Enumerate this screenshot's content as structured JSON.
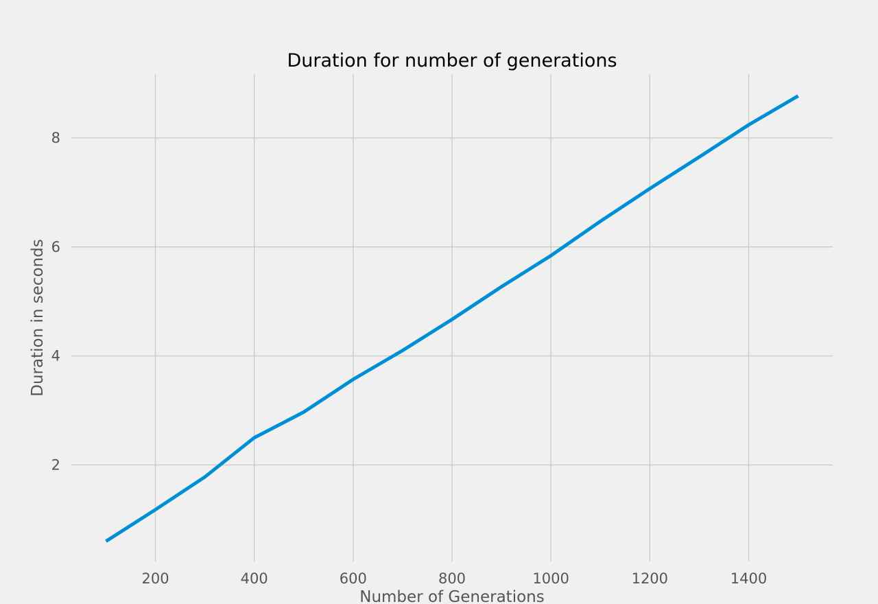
{
  "chart_data": {
    "type": "line",
    "title": "Duration for number of generations",
    "xlabel": "Number of Generations",
    "ylabel": "Duration in seconds",
    "x": [
      100,
      200,
      300,
      400,
      500,
      600,
      700,
      800,
      900,
      1000,
      1100,
      1200,
      1300,
      1400,
      1500
    ],
    "series": [
      {
        "values": [
          0.6,
          1.18,
          1.78,
          2.5,
          2.97,
          3.57,
          4.1,
          4.67,
          5.27,
          5.84,
          6.47,
          7.07,
          7.65,
          8.24,
          8.77
        ]
      }
    ],
    "xlim": [
      30,
      1570
    ],
    "ylim": [
      0.23,
      9.17
    ],
    "xticks": [
      200,
      400,
      600,
      800,
      1000,
      1200,
      1400
    ],
    "yticks": [
      2,
      4,
      6,
      8
    ],
    "xtick_labels": [
      "200",
      "400",
      "600",
      "800",
      "1000",
      "1200",
      "1400"
    ],
    "ytick_labels": [
      "2",
      "4",
      "6",
      "8"
    ],
    "grid": true,
    "line_color": "#008fd5",
    "background_color": "#f0f0f0",
    "grid_color": "#cbcbcb"
  }
}
